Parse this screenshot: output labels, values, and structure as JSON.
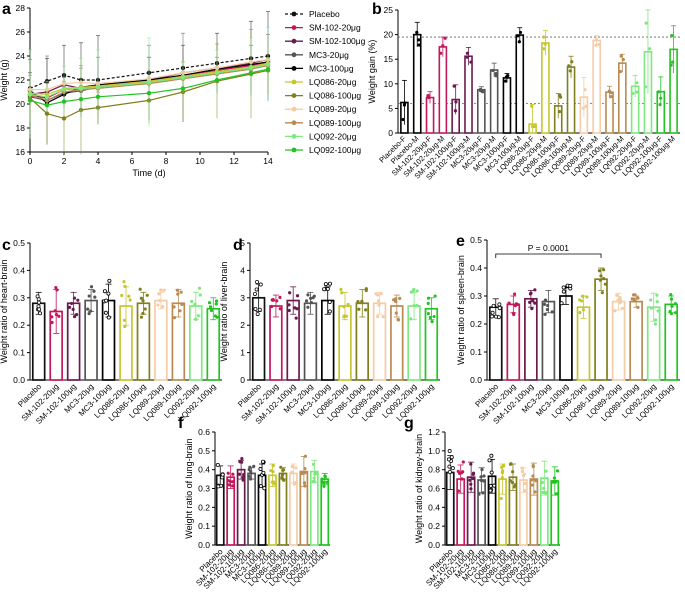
{
  "groups": [
    "Placebo",
    "SM-102-20μg",
    "SM-102-100μg",
    "MC3-20μg",
    "MC3-100μg",
    "LQ086-20μg",
    "LQ086-100μg",
    "LQ089-20μg",
    "LQ089-100μg",
    "LQ092-20μg",
    "LQ092-100μg"
  ],
  "colors": [
    "#111111",
    "#c2185b",
    "#6a1b4d",
    "#555555",
    "#000000",
    "#c6c631",
    "#7f7f1d",
    "#f6cca6",
    "#b98a52",
    "#7fe87f",
    "#22c322"
  ],
  "chart_data": [
    {
      "panel": "a",
      "type": "line",
      "xlabel": "Time (d)",
      "ylabel": "Weight (g)",
      "xlim": [
        0,
        14
      ],
      "ylim": [
        16,
        28
      ],
      "xticks": [
        0,
        2,
        4,
        6,
        8,
        10,
        12,
        14
      ],
      "yticks": [
        16,
        18,
        20,
        22,
        24,
        26,
        28
      ],
      "x": [
        0,
        1,
        2,
        3,
        4,
        7,
        9,
        11,
        13,
        14
      ],
      "series": [
        {
          "name": "Placebo",
          "dashed": true,
          "values": [
            21.3,
            21.9,
            22.4,
            22.0,
            22.0,
            22.6,
            23.0,
            23.4,
            23.8,
            24.0
          ]
        },
        {
          "name": "SM-102-20μg",
          "values": [
            20.7,
            20.5,
            21.2,
            21.3,
            21.5,
            21.9,
            22.4,
            22.8,
            23.2,
            23.5
          ]
        },
        {
          "name": "SM-102-100μg",
          "values": [
            20.8,
            21.0,
            21.6,
            21.3,
            21.6,
            22.0,
            22.6,
            23.0,
            23.4,
            23.7
          ]
        },
        {
          "name": "MC3-20μg",
          "values": [
            20.6,
            20.3,
            20.9,
            21.1,
            21.4,
            21.8,
            22.2,
            22.6,
            23.0,
            23.3
          ]
        },
        {
          "name": "MC3-100μg",
          "values": [
            21.1,
            20.1,
            20.8,
            21.4,
            21.6,
            22.0,
            22.4,
            22.9,
            23.3,
            23.5
          ]
        },
        {
          "name": "LQ086-20μg",
          "values": [
            20.9,
            20.8,
            21.3,
            21.4,
            21.5,
            21.9,
            22.3,
            22.7,
            23.1,
            23.4
          ]
        },
        {
          "name": "LQ086-100μg",
          "values": [
            20.5,
            19.2,
            18.8,
            19.5,
            19.7,
            20.3,
            21.0,
            21.9,
            22.5,
            22.8
          ]
        },
        {
          "name": "LQ089-20μg",
          "values": [
            21.2,
            21.2,
            21.7,
            21.8,
            21.7,
            22.1,
            22.6,
            23.0,
            23.5,
            23.7
          ]
        },
        {
          "name": "LQ089-100μg",
          "values": [
            20.8,
            20.3,
            21.0,
            21.2,
            21.3,
            21.7,
            22.1,
            22.5,
            22.9,
            23.2
          ]
        },
        {
          "name": "LQ092-20μg",
          "values": [
            20.8,
            20.6,
            21.2,
            21.3,
            21.4,
            21.8,
            22.2,
            22.6,
            23.0,
            23.3
          ]
        },
        {
          "name": "LQ092-100μg",
          "values": [
            20.3,
            19.9,
            20.2,
            20.4,
            20.6,
            20.9,
            21.3,
            22.0,
            22.6,
            22.9
          ]
        }
      ]
    },
    {
      "panel": "b",
      "type": "bar",
      "ylabel": "Weight gain (%)",
      "ylim": [
        0,
        25
      ],
      "yticks": [
        0,
        5,
        10,
        15,
        20,
        25
      ],
      "ref_lines": [
        19.5,
        6
      ],
      "categories": [
        "Placebo-F",
        "Placebo-M",
        "SM-102-20μg-F",
        "SM-102-20μg-M",
        "SM-102-100μg-F",
        "SM-102-100μg-M",
        "MC3-20μg-F",
        "MC3-20μg-M",
        "MC3-100μg-F",
        "MC3-100μg-M",
        "LQ086-20μg-F",
        "LQ086-20μg-M",
        "LQ086-100μg-F",
        "LQ086-100μg-M",
        "LQ089-20μg-F",
        "LQ089-20μg-M",
        "LQ089-100μg-F",
        "LQ089-100μg-M",
        "LQ092-20μg-F",
        "LQ092-20μg-M",
        "LQ092-100μg-F",
        "LQ092-100μg-M"
      ],
      "values": [
        6.2,
        20.0,
        7.2,
        17.5,
        6.8,
        15.6,
        8.8,
        12.8,
        11.2,
        19.9,
        1.8,
        18.3,
        5.5,
        13.4,
        7.3,
        18.8,
        8.3,
        14.2,
        9.5,
        16.5,
        8.4,
        17.0
      ],
      "errors": [
        4.5,
        2.5,
        1.2,
        2.0,
        3.0,
        1.8,
        0.6,
        1.4,
        0.9,
        1.5,
        4.0,
        2.5,
        2.5,
        2.2,
        4.0,
        1.0,
        1.2,
        1.8,
        2.2,
        8.5,
        3.0,
        4.8
      ]
    },
    {
      "panel": "c",
      "type": "bar",
      "ylabel": "Weight ratio of heart-brain",
      "ylim": [
        0,
        0.5
      ],
      "yticks": [
        0,
        0.1,
        0.2,
        0.3,
        0.4,
        0.5
      ],
      "decimals": 1,
      "values": [
        0.28,
        0.25,
        0.28,
        0.29,
        0.29,
        0.27,
        0.28,
        0.29,
        0.28,
        0.27,
        0.26
      ],
      "errors": [
        0.04,
        0.08,
        0.04,
        0.04,
        0.06,
        0.07,
        0.04,
        0.03,
        0.05,
        0.05,
        0.04
      ]
    },
    {
      "panel": "d",
      "type": "bar",
      "ylabel": "Weight ratio of liver-brain",
      "ylim": [
        0,
        5
      ],
      "yticks": [
        0,
        1,
        2,
        3,
        4,
        5
      ],
      "decimals": 0,
      "values": [
        3.0,
        2.7,
        2.9,
        2.8,
        2.9,
        2.7,
        2.8,
        2.8,
        2.7,
        2.7,
        2.6
      ],
      "errors": [
        0.5,
        0.4,
        0.5,
        0.4,
        0.5,
        0.5,
        0.5,
        0.4,
        0.4,
        0.5,
        0.4
      ]
    },
    {
      "panel": "e",
      "type": "bar",
      "ylabel": "Weight ratio of spleen-brain",
      "ylim": [
        0,
        0.5
      ],
      "yticks": [
        0,
        0.1,
        0.2,
        0.3,
        0.4,
        0.5
      ],
      "decimals": 1,
      "values": [
        0.26,
        0.27,
        0.29,
        0.28,
        0.3,
        0.26,
        0.36,
        0.28,
        0.28,
        0.26,
        0.27
      ],
      "errors": [
        0.03,
        0.03,
        0.03,
        0.04,
        0.03,
        0.04,
        0.04,
        0.03,
        0.02,
        0.05,
        0.03
      ],
      "annotation": {
        "text": "P = 0.0001",
        "from": 0,
        "to": 6
      }
    },
    {
      "panel": "f",
      "type": "bar",
      "ylabel": "Weight ratio of lung-brain",
      "ylim": [
        0,
        0.6
      ],
      "yticks": [
        0,
        0.1,
        0.2,
        0.3,
        0.4,
        0.5,
        0.6
      ],
      "decimals": 1,
      "values": [
        0.37,
        0.36,
        0.4,
        0.38,
        0.37,
        0.37,
        0.38,
        0.38,
        0.39,
        0.39,
        0.35
      ],
      "errors": [
        0.05,
        0.06,
        0.05,
        0.03,
        0.06,
        0.06,
        0.03,
        0.05,
        0.08,
        0.06,
        0.03
      ]
    },
    {
      "panel": "g",
      "type": "bar",
      "ylabel": "Weight ratio of kidney-brain",
      "ylim": [
        0,
        1.2
      ],
      "yticks": [
        0,
        0.2,
        0.4,
        0.6,
        0.8,
        1.0,
        1.2
      ],
      "decimals": 1,
      "values": [
        0.77,
        0.7,
        0.72,
        0.69,
        0.73,
        0.7,
        0.72,
        0.69,
        0.7,
        0.71,
        0.68
      ],
      "errors": [
        0.18,
        0.15,
        0.16,
        0.13,
        0.18,
        0.16,
        0.14,
        0.13,
        0.17,
        0.18,
        0.15
      ]
    }
  ]
}
